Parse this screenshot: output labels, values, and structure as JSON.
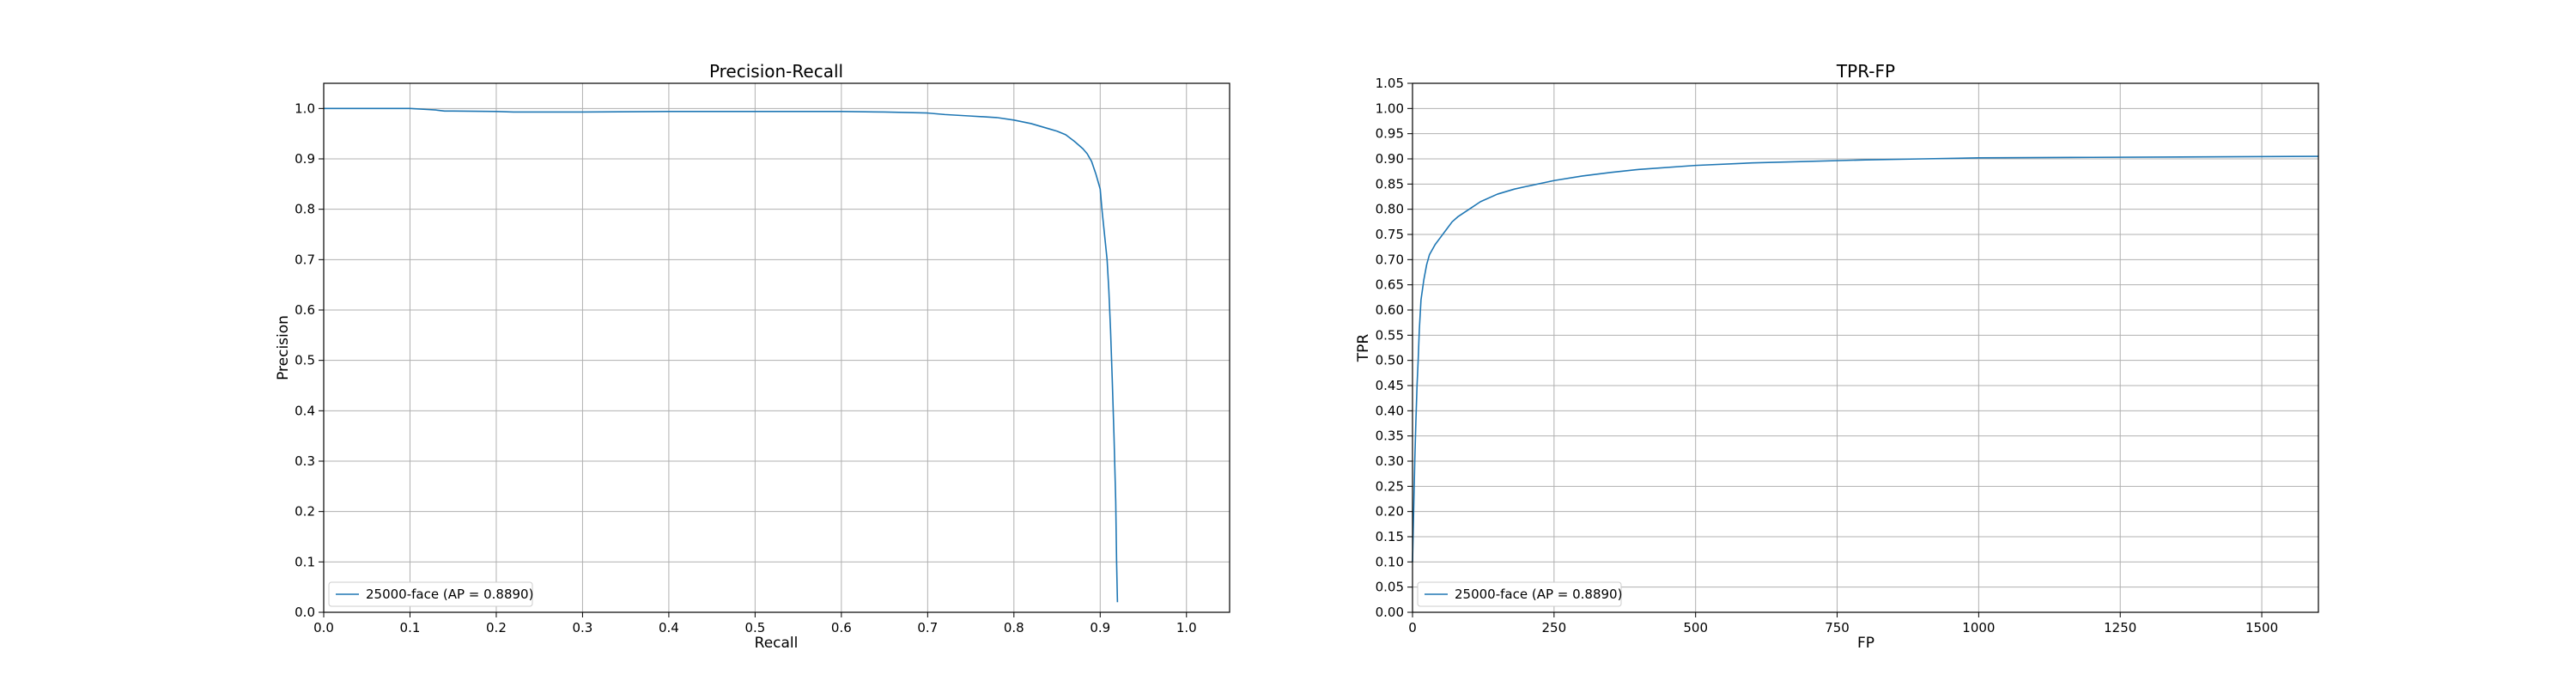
{
  "chart_data": [
    {
      "type": "line",
      "title": "Precision-Recall",
      "xlabel": "Recall",
      "ylabel": "Precision",
      "xlim": [
        0,
        1.05
      ],
      "ylim": [
        0,
        1.05
      ],
      "xticks": [
        0.0,
        0.1,
        0.2,
        0.3,
        0.4,
        0.5,
        0.6,
        0.7,
        0.8,
        0.9,
        1.0
      ],
      "yticks": [
        0.0,
        0.1,
        0.2,
        0.3,
        0.4,
        0.5,
        0.6,
        0.7,
        0.8,
        0.9,
        1.0
      ],
      "xtick_labels": [
        "0.0",
        "0.1",
        "0.2",
        "0.3",
        "0.4",
        "0.5",
        "0.6",
        "0.7",
        "0.8",
        "0.9",
        "1.0"
      ],
      "ytick_labels": [
        "0.0",
        "0.1",
        "0.2",
        "0.3",
        "0.4",
        "0.5",
        "0.6",
        "0.7",
        "0.8",
        "0.9",
        "1.0"
      ],
      "grid": true,
      "legend_position": "lower-left",
      "series": [
        {
          "name": "25000-face (AP = 0.8890)",
          "color": "#1f77b4",
          "x": [
            0.0,
            0.05,
            0.1,
            0.12,
            0.13,
            0.14,
            0.15,
            0.2,
            0.22,
            0.25,
            0.3,
            0.4,
            0.5,
            0.6,
            0.65,
            0.7,
            0.72,
            0.75,
            0.78,
            0.8,
            0.82,
            0.84,
            0.85,
            0.86,
            0.87,
            0.88,
            0.885,
            0.89,
            0.895,
            0.9,
            0.902,
            0.905,
            0.908,
            0.91,
            0.912,
            0.914,
            0.916,
            0.918,
            0.919,
            0.92
          ],
          "y": [
            1.0,
            1.0,
            1.0,
            0.998,
            0.997,
            0.995,
            0.995,
            0.994,
            0.993,
            0.993,
            0.993,
            0.994,
            0.994,
            0.994,
            0.993,
            0.991,
            0.988,
            0.985,
            0.982,
            0.977,
            0.97,
            0.96,
            0.955,
            0.948,
            0.935,
            0.92,
            0.91,
            0.895,
            0.87,
            0.84,
            0.8,
            0.75,
            0.7,
            0.64,
            0.56,
            0.46,
            0.35,
            0.22,
            0.1,
            0.02
          ]
        }
      ]
    },
    {
      "type": "line",
      "title": "TPR-FP",
      "xlabel": "FP",
      "ylabel": "TPR",
      "xlim": [
        0,
        1600
      ],
      "ylim": [
        0,
        1.05
      ],
      "xticks": [
        0,
        250,
        500,
        750,
        1000,
        1250,
        1500
      ],
      "yticks": [
        0.0,
        0.05,
        0.1,
        0.15,
        0.2,
        0.25,
        0.3,
        0.35,
        0.4,
        0.45,
        0.5,
        0.55,
        0.6,
        0.65,
        0.7,
        0.75,
        0.8,
        0.85,
        0.9,
        0.95,
        1.0,
        1.05
      ],
      "xtick_labels": [
        "0",
        "250",
        "500",
        "750",
        "1000",
        "1250",
        "1500"
      ],
      "ytick_labels": [
        "0.00",
        "0.05",
        "0.10",
        "0.15",
        "0.20",
        "0.25",
        "0.30",
        "0.35",
        "0.40",
        "0.45",
        "0.50",
        "0.55",
        "0.60",
        "0.65",
        "0.70",
        "0.75",
        "0.80",
        "0.85",
        "0.90",
        "0.95",
        "1.00",
        "1.05"
      ],
      "grid": true,
      "legend_position": "lower-left",
      "series": [
        {
          "name": "25000-face (AP = 0.8890)",
          "color": "#1f77b4",
          "x": [
            0,
            2,
            4,
            6,
            8,
            10,
            12,
            15,
            20,
            25,
            30,
            40,
            50,
            60,
            70,
            80,
            100,
            120,
            150,
            180,
            200,
            250,
            300,
            350,
            400,
            500,
            600,
            700,
            800,
            900,
            1000,
            1200,
            1400,
            1600
          ],
          "y": [
            0.1,
            0.2,
            0.3,
            0.38,
            0.45,
            0.5,
            0.56,
            0.62,
            0.66,
            0.69,
            0.71,
            0.73,
            0.745,
            0.76,
            0.775,
            0.785,
            0.8,
            0.815,
            0.83,
            0.84,
            0.845,
            0.857,
            0.866,
            0.873,
            0.879,
            0.887,
            0.892,
            0.895,
            0.898,
            0.9,
            0.902,
            0.903,
            0.904,
            0.905
          ]
        }
      ]
    }
  ]
}
